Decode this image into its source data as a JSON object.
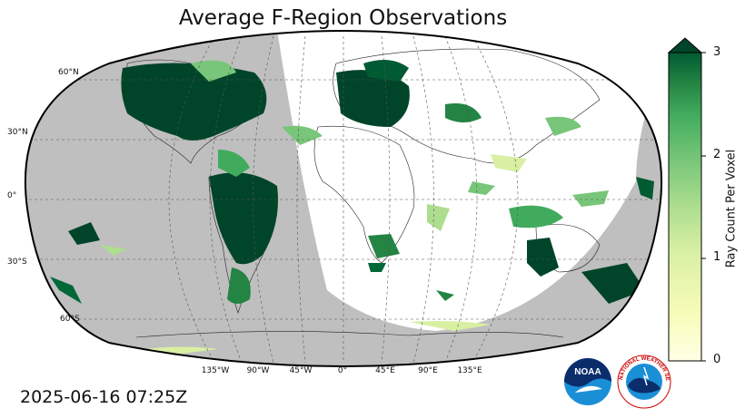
{
  "title": "Average F-Region Observations",
  "timestamp": "2025-06-16 07:25Z",
  "colorbar": {
    "label": "Ray Count Per Voxel",
    "ticks": [
      "0",
      "1",
      "2",
      "3"
    ],
    "range": [
      0,
      3
    ],
    "extend": "max",
    "colormap": "YlGn"
  },
  "map": {
    "projection": "Robinson",
    "latitude_labels": [
      "60°N",
      "30°N",
      "0°",
      "30°S",
      "60°S"
    ],
    "longitude_labels": [
      "135°W",
      "90°W",
      "45°W",
      "0°",
      "45°E",
      "90°E",
      "135°E"
    ],
    "night_shading_color": "#bfbfbf",
    "data_colors": [
      "#ffffcc",
      "#c2e699",
      "#78c679",
      "#31a354",
      "#006837",
      "#004529"
    ]
  },
  "logos": {
    "left": "NOAA",
    "right": "NATIONAL WEATHER SERVICE"
  }
}
